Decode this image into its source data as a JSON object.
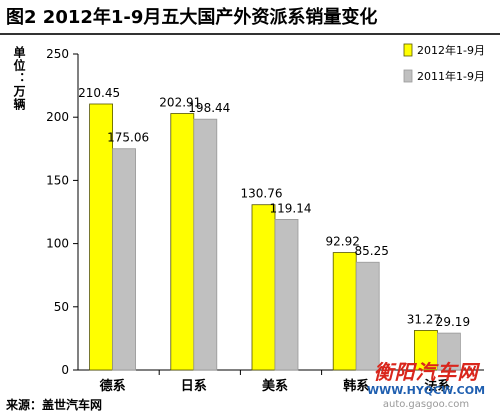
{
  "chart_data": {
    "type": "bar",
    "title": "图2  2012年1-9月五大国产外资派系销量变化",
    "ylabel": "单位：万辆",
    "xlabel": "",
    "categories": [
      "德系",
      "日系",
      "美系",
      "韩系",
      "法系"
    ],
    "series": [
      {
        "name": "2012年1-9月",
        "values": [
          210.45,
          202.91,
          130.76,
          92.92,
          31.27
        ],
        "color": "#ffff00"
      },
      {
        "name": "2011年1-9月",
        "values": [
          175.06,
          198.44,
          119.14,
          85.25,
          29.19
        ],
        "color": "#c0c0c0"
      }
    ],
    "value_labels": [
      [
        "210.45",
        "202.91",
        "130.76",
        "92.92",
        "31.27"
      ],
      [
        "175.06",
        "198.44",
        "119.14",
        "85.25",
        "29.19"
      ]
    ],
    "ylim": [
      0,
      250
    ],
    "yticks": [
      0,
      50,
      100,
      150,
      200,
      250
    ],
    "ytick_labels": [
      "0",
      "50",
      "100",
      "150",
      "200",
      "250"
    ],
    "grid": false,
    "legend_position": "top-right"
  },
  "source": "来源：盖世汽车网",
  "watermark": {
    "logo": "衡阳汽车网",
    "url": "WWW.HYQCW.COM",
    "url2": "auto.gasgoo.com"
  }
}
